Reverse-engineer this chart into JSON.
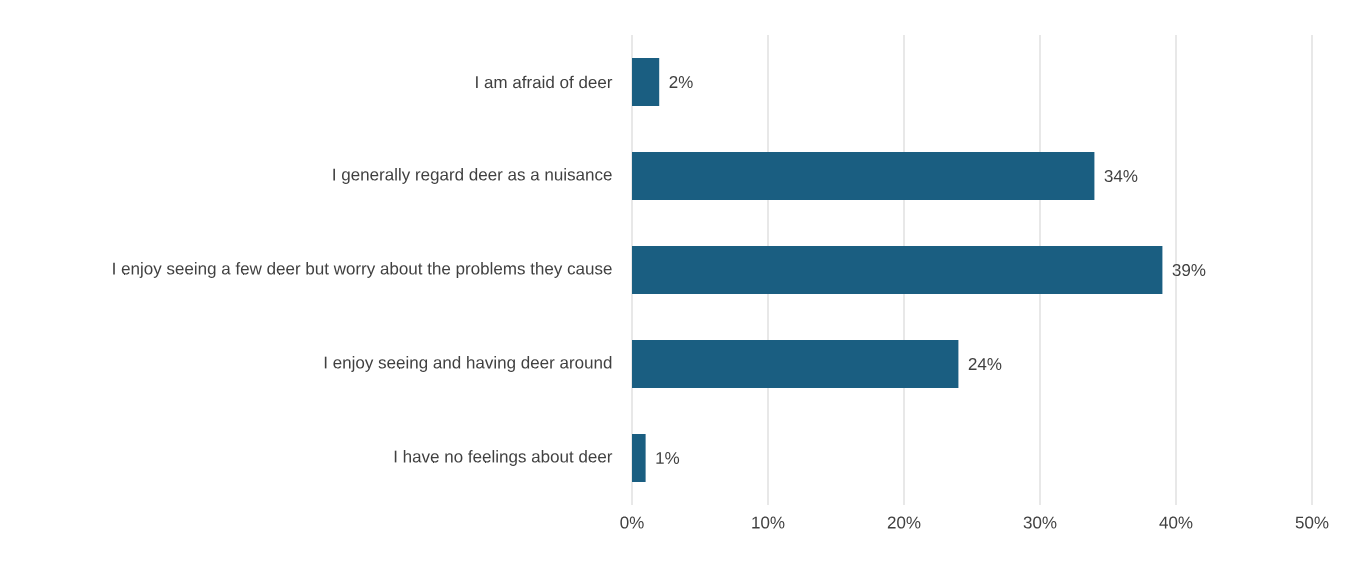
{
  "chart_data": {
    "type": "bar",
    "orientation": "horizontal",
    "categories": [
      "I am afraid of deer",
      "I generally regard deer as a nuisance",
      "I enjoy seeing a few deer but worry about the problems they cause",
      "I enjoy seeing and having deer around",
      "I have no feelings about deer"
    ],
    "values": [
      2,
      34,
      39,
      24,
      1
    ],
    "value_labels": [
      "2%",
      "34%",
      "39%",
      "24%",
      "1%"
    ],
    "color": "#1a5e81",
    "xlim": [
      0,
      50
    ],
    "xticks": [
      {
        "value": 0,
        "label": "0%"
      },
      {
        "value": 10,
        "label": "10%"
      },
      {
        "value": 20,
        "label": "20%"
      },
      {
        "value": 30,
        "label": "30%"
      },
      {
        "value": 40,
        "label": "40%"
      },
      {
        "value": 50,
        "label": "50%"
      }
    ],
    "grid": "x"
  }
}
